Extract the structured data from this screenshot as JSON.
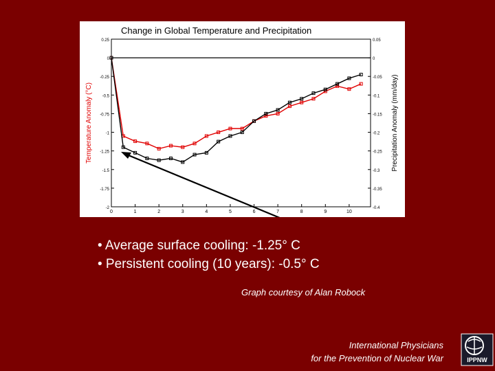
{
  "chart_data": {
    "type": "line",
    "title": "Change in Global Temperature and Precipitation",
    "ylabel": "Temperature Anomaly (°C)",
    "y2label": "Precipitation Anomaly (mm/day)",
    "xlim": [
      0,
      10.9
    ],
    "ylim": [
      -2,
      0.25
    ],
    "y2lim": [
      -0.4,
      0.05
    ],
    "x_ticks": [
      "0",
      "1",
      "2",
      "3",
      "4",
      "5",
      "6",
      "7",
      "8",
      "9",
      "10"
    ],
    "y_ticks": [
      "0.25",
      "0",
      "-0.25",
      "-0.5",
      "-0.75",
      "-1",
      "-1.25",
      "-1.5",
      "-1.75",
      "-2"
    ],
    "y2_ticks": [
      "0.05",
      "0",
      "-0.05",
      "-0.1",
      "-0.15",
      "-0.2",
      "-0.25",
      "-0.3",
      "-0.35",
      "-0.4"
    ],
    "zero_line": true,
    "grid": false,
    "series": [
      {
        "axis": "left",
        "color": "#e00000",
        "x": [
          0.0,
          0.5,
          1.0,
          1.5,
          2.0,
          2.5,
          3.0,
          3.5,
          4.0,
          4.5,
          5.0,
          5.5,
          6.0,
          6.5,
          7.0,
          7.5,
          8.0,
          8.5,
          9.0,
          9.5,
          10.0,
          10.5
        ],
        "values": [
          0.0,
          -1.05,
          -1.12,
          -1.15,
          -1.22,
          -1.18,
          -1.2,
          -1.15,
          -1.05,
          -1.0,
          -0.95,
          -0.95,
          -0.85,
          -0.78,
          -0.75,
          -0.65,
          -0.6,
          -0.55,
          -0.45,
          -0.38,
          -0.42,
          -0.35
        ]
      },
      {
        "axis": "right",
        "color": "#000000",
        "x": [
          0.0,
          0.5,
          1.0,
          1.5,
          2.0,
          2.5,
          3.0,
          3.5,
          4.0,
          4.5,
          5.0,
          5.5,
          6.0,
          6.5,
          7.0,
          7.5,
          8.0,
          8.5,
          9.0,
          9.5,
          10.0,
          10.5
        ],
        "values": [
          0.0,
          -0.24,
          -0.255,
          -0.27,
          -0.275,
          -0.27,
          -0.28,
          -0.26,
          -0.255,
          -0.225,
          -0.21,
          -0.2,
          -0.17,
          -0.15,
          -0.14,
          -0.12,
          -0.11,
          -0.095,
          -0.085,
          -0.07,
          -0.055,
          -0.045
        ]
      }
    ],
    "annotation": "arrow pointing to cooling minimum near year 0.5"
  },
  "text": {
    "bullet1": "• Average surface cooling: -1.25° C",
    "bullet2": "• Persistent cooling (10 years): -0.5° C",
    "credit": "Graph courtesy of Alan Robock",
    "org_line1": "International Physicians",
    "org_line2": "for the Prevention of Nuclear War",
    "logo_text": "IPPNW"
  },
  "colors": {
    "background": "#7a0000",
    "temperature": "#e00000",
    "precipitation": "#000000"
  }
}
